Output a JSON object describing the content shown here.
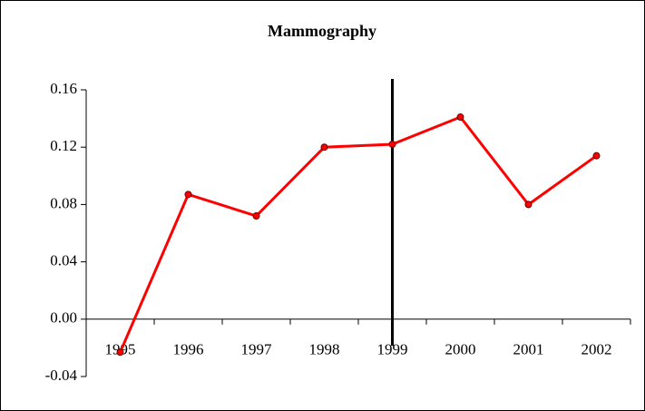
{
  "chart_data": {
    "type": "line",
    "title": "Mammography",
    "categories": [
      "1995",
      "1996",
      "1997",
      "1998",
      "1999",
      "2000",
      "2001",
      "2002"
    ],
    "values": [
      -0.023,
      0.087,
      0.072,
      0.12,
      0.122,
      0.141,
      0.08,
      0.114
    ],
    "color": "#ff0000",
    "ylim": [
      -0.04,
      0.16
    ],
    "yticks": [
      {
        "value": -0.04,
        "label": "-0.04"
      },
      {
        "value": 0,
        "label": "0.00"
      },
      {
        "value": 0.04,
        "label": "0.04"
      },
      {
        "value": 0.08,
        "label": "0.08"
      },
      {
        "value": 0.12,
        "label": "0.12"
      },
      {
        "value": 0.16,
        "label": "0.16"
      }
    ],
    "grid": false
  }
}
